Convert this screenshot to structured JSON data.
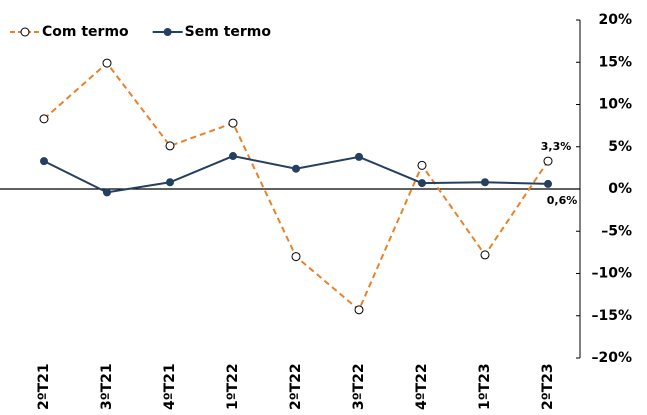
{
  "chart_data": {
    "type": "line",
    "categories": [
      "2ºT21",
      "3ºT21",
      "4ºT21",
      "1ºT22",
      "2ºT22",
      "3ºT22",
      "4ºT22",
      "1ºT23",
      "2ºT23"
    ],
    "series": [
      {
        "name": "Com termo",
        "color": "#e8822a",
        "dashed": true,
        "marker": "open-circle",
        "values": [
          8.3,
          14.9,
          5.1,
          7.8,
          -8.0,
          -14.3,
          2.8,
          -7.8,
          3.3
        ],
        "value_labels": [
          null,
          null,
          null,
          null,
          null,
          null,
          null,
          null,
          "3,3%"
        ]
      },
      {
        "name": "Sem termo",
        "color": "#243f60",
        "dashed": false,
        "marker": "filled-circle",
        "values": [
          3.3,
          -0.4,
          0.8,
          3.9,
          2.4,
          3.8,
          0.7,
          0.8,
          0.6
        ],
        "value_labels": [
          null,
          null,
          null,
          null,
          null,
          null,
          null,
          null,
          "0,6%"
        ]
      }
    ],
    "ylim": [
      -20,
      20
    ],
    "yticks": [
      {
        "value": -20,
        "label": "–20%"
      },
      {
        "value": -15,
        "label": "–15%"
      },
      {
        "value": -10,
        "label": "–10%"
      },
      {
        "value": -5,
        "label": "–5%"
      },
      {
        "value": 0,
        "label": "0%"
      },
      {
        "value": 5,
        "label": "5%"
      },
      {
        "value": 10,
        "label": "10%"
      },
      {
        "value": 15,
        "label": "15%"
      },
      {
        "value": 20,
        "label": "20%"
      }
    ],
    "y_axis_side": "right",
    "legend": "top-left",
    "grid": false
  }
}
